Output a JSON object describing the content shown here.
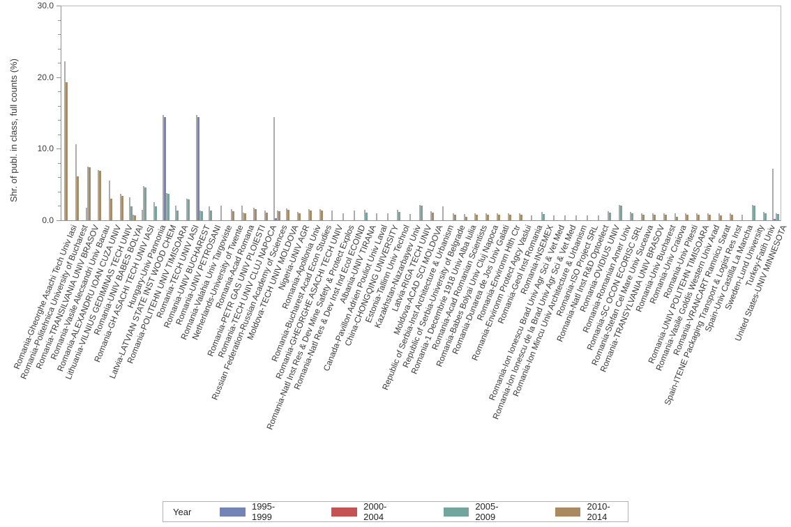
{
  "chart_data": {
    "type": "bar",
    "title": "",
    "ylabel": "Shr. of publ. in class, full counts (%)",
    "ylim": [
      0,
      30
    ],
    "ytick_step_major": 10,
    "ytick_step_minor": 2,
    "yticklabels": [
      "0.0",
      "10.0",
      "20.0",
      "30.0"
    ],
    "grid": "off",
    "legend_position": "bottom",
    "legend_title": "Year",
    "interval_color": "#ababab",
    "series_note": "thin gray companion lines are stability-interval bounds drawn left of each colored bar; s=x means interval only with no visible colored bar",
    "series": [
      {
        "key": "blue",
        "label": "1995-1999",
        "color": "#7584b6"
      },
      {
        "key": "red",
        "label": "2000-2004",
        "color": "#c65353"
      },
      {
        "key": "teal",
        "label": "2005-2009",
        "color": "#72a69d"
      },
      {
        "key": "tan",
        "label": "2010-2014",
        "color": "#aa8a61"
      }
    ],
    "groups": [
      {
        "label": "Romania-Gheorghe Asachi Tech Univ Iasi",
        "bars": [
          {
            "s": "tan",
            "v": 19.3,
            "hi": 22.2
          }
        ]
      },
      {
        "label": "Romania-Politehnica University of Bucharest",
        "bars": [
          {
            "s": "tan",
            "v": 6.1,
            "hi": 10.6
          }
        ]
      },
      {
        "label": "Romania-TRANSILVANIA UNIV BRASOV",
        "bars": [
          {
            "s": "x",
            "v": 0,
            "hi": 1.8
          },
          {
            "s": "tan",
            "v": 7.4,
            "hi": 7.5
          }
        ]
      },
      {
        "label": "Romania-Vasile Alecsandri Univ Bacau",
        "bars": [
          {
            "s": "tan",
            "v": 6.9,
            "hi": 7.0
          }
        ]
      },
      {
        "label": "Romania-ALEXANDRU IOAN CUZA UNIV",
        "bars": [
          {
            "s": "tan",
            "v": 3.0,
            "hi": 5.6
          }
        ]
      },
      {
        "label": "Lithuania-VILNIUS GEDIMINAS TECH UNIV",
        "bars": [
          {
            "s": "tan",
            "v": 3.4,
            "hi": 3.7
          }
        ]
      },
      {
        "label": "Romania-UNIV BABES BOLYAI",
        "bars": [
          {
            "s": "teal",
            "v": 1.9,
            "hi": 3.2
          },
          {
            "s": "tan",
            "v": 0.7,
            "hi": 0.8
          }
        ]
      },
      {
        "label": "Romania-GH ASACHI TECH UNIV IASI",
        "bars": [
          {
            "s": "x",
            "v": 0,
            "hi": 1.5
          },
          {
            "s": "teal",
            "v": 4.6,
            "hi": 4.8
          }
        ]
      },
      {
        "label": "Hungary-Univ Pannonia",
        "bars": [
          {
            "s": "teal",
            "v": 1.9,
            "hi": 2.5
          }
        ]
      },
      {
        "label": "Latvia-LATVIAN STATE INST WOOD CHEM",
        "bars": [
          {
            "s": "blue",
            "v": 14.4,
            "hi": 14.7
          },
          {
            "s": "teal",
            "v": 3.7,
            "hi": 3.8
          }
        ]
      },
      {
        "label": "Romania-POLITEHN UNIV TIMISOARA",
        "bars": [
          {
            "s": "teal",
            "v": 1.4,
            "hi": 2.0
          }
        ]
      },
      {
        "label": "Romania-TECH UNIV IASI",
        "bars": [
          {
            "s": "teal",
            "v": 2.9,
            "hi": 3.0
          }
        ]
      },
      {
        "label": "Romania-UNIV BUCHAREST",
        "bars": [
          {
            "s": "blue",
            "v": 14.4,
            "hi": 14.7
          },
          {
            "s": "teal",
            "v": 1.3,
            "hi": 1.4
          }
        ]
      },
      {
        "label": "Romania-UNIV PETROSANI",
        "bars": [
          {
            "s": "teal",
            "v": 1.4,
            "hi": 1.9
          }
        ]
      },
      {
        "label": "Romania-Valahia Univ Targoviste",
        "bars": [
          {
            "s": "x",
            "v": 0,
            "hi": 2.0
          }
        ]
      },
      {
        "label": "Netherlands-University of Twente",
        "bars": [
          {
            "s": "tan",
            "v": 1.3,
            "hi": 1.6
          }
        ]
      },
      {
        "label": "Romania-Acad Romana",
        "bars": [
          {
            "s": "x",
            "v": 0,
            "hi": 2.0
          },
          {
            "s": "tan",
            "v": 1.0,
            "hi": 1.1
          }
        ]
      },
      {
        "label": "Romania-PETR GAS UNIV PLOIESTI",
        "bars": [
          {
            "s": "tan",
            "v": 1.6,
            "hi": 1.8
          }
        ]
      },
      {
        "label": "Romania-TECH UNIV CLUJ NAPOCA",
        "bars": [
          {
            "s": "tan",
            "v": 1.1,
            "hi": 1.4
          }
        ]
      },
      {
        "label": "Russian Federation-Russian Academy of Sciences",
        "bars": [
          {
            "s": "blue",
            "v": 0.3,
            "hi": 14.4
          },
          {
            "s": "tan",
            "v": 1.3,
            "hi": 1.4
          }
        ]
      },
      {
        "label": "Moldova-TECH UNIV MOLDOVA",
        "bars": [
          {
            "s": "tan",
            "v": 1.5,
            "hi": 1.7
          }
        ]
      },
      {
        "label": "Nigeria-UNIV AGR",
        "bars": [
          {
            "s": "tan",
            "v": 1.0,
            "hi": 1.2
          }
        ]
      },
      {
        "label": "Romania-Apollonia Univ",
        "bars": [
          {
            "s": "tan",
            "v": 1.4,
            "hi": 1.6
          }
        ]
      },
      {
        "label": "Romania-Bucharest Acad Econ Studies",
        "bars": [
          {
            "s": "tan",
            "v": 1.4,
            "hi": 1.6
          }
        ]
      },
      {
        "label": "Romania-GHEORGHE ASACHI TECH UNIV",
        "bars": [
          {
            "s": "x",
            "v": 0,
            "hi": 1.4
          }
        ]
      },
      {
        "label": "Romania-Natl Inst Res & Dev Mine Safety & Protect Explos",
        "bars": [
          {
            "s": "x",
            "v": 0,
            "hi": 1.0
          }
        ]
      },
      {
        "label": "Romania-Natl Res & Dev Inst Ind Ecol ECOIND",
        "bars": [
          {
            "s": "x",
            "v": 0,
            "hi": 1.4
          }
        ]
      },
      {
        "label": "Albania-UNIV TIRANA",
        "bars": [
          {
            "s": "teal",
            "v": 1.1,
            "hi": 1.5
          }
        ]
      },
      {
        "label": "Canada-Pavillon Adrien Pouliot Univ Laval",
        "bars": [
          {
            "s": "x",
            "v": 0,
            "hi": 1.0
          }
        ]
      },
      {
        "label": "China-CHONGQING UNIVERSITY",
        "bars": [
          {
            "s": "x",
            "v": 0,
            "hi": 1.0
          }
        ]
      },
      {
        "label": "Estonia-Tallinn Univ Technol",
        "bars": [
          {
            "s": "teal",
            "v": 1.2,
            "hi": 1.5
          }
        ]
      },
      {
        "label": "Kazakhstan-Nazarbayev Univ",
        "bars": [
          {
            "s": "x",
            "v": 0,
            "hi": 0.9
          }
        ]
      },
      {
        "label": "Latvia-RIGA TECH UNIV",
        "bars": [
          {
            "s": "teal",
            "v": 2.0,
            "hi": 2.1
          }
        ]
      },
      {
        "label": "Moldova-ACAD SCI MOLDOVA",
        "bars": [
          {
            "s": "tan",
            "v": 1.1,
            "hi": 1.3
          }
        ]
      },
      {
        "label": "Republic of Serbia-Inst Architecture & Urbanism",
        "bars": [
          {
            "s": "x",
            "v": 0,
            "hi": 1.9
          }
        ]
      },
      {
        "label": "Republic of Serbia-University of Belgrade",
        "bars": [
          {
            "s": "tan",
            "v": 0.8,
            "hi": 1.0
          }
        ]
      },
      {
        "label": "Romania-1 Decembrie 1918 Univ Alba Iulia",
        "bars": [
          {
            "s": "tan",
            "v": 0.5,
            "hi": 0.9
          }
        ]
      },
      {
        "label": "Romania-Acad Romanian Scientists",
        "bars": [
          {
            "s": "tan",
            "v": 0.8,
            "hi": 1.0
          }
        ]
      },
      {
        "label": "Romania-Babes Bolyai Univ Cluj Napoca",
        "bars": [
          {
            "s": "tan",
            "v": 0.8,
            "hi": 1.0
          }
        ]
      },
      {
        "label": "Romania-Dunarea de Jos Univ Galati",
        "bars": [
          {
            "s": "tan",
            "v": 0.8,
            "hi": 1.0
          }
        ]
      },
      {
        "label": "Romania-Environm Hlth Ctr",
        "bars": [
          {
            "s": "tan",
            "v": 0.8,
            "hi": 1.0
          }
        ]
      },
      {
        "label": "Romania-Environm Protect Agcy Vaslui",
        "bars": [
          {
            "s": "tan",
            "v": 0.8,
            "hi": 1.0
          }
        ]
      },
      {
        "label": "Romania-Geol Inst Romania",
        "bars": [
          {
            "s": "x",
            "v": 0,
            "hi": 0.7
          }
        ]
      },
      {
        "label": "Romania-INSEMEX",
        "bars": [
          {
            "s": "teal",
            "v": 0.9,
            "hi": 1.2
          }
        ]
      },
      {
        "label": "Romania-Ion Ionescu Brad Univ Agr Sci & Vet Med",
        "bars": [
          {
            "s": "x",
            "v": 0,
            "hi": 0.7
          }
        ]
      },
      {
        "label": "Romania-Ion Ionescu de la Brad Univ Agr Sci & Vet Med",
        "bars": [
          {
            "s": "x",
            "v": 0,
            "hi": 0.7
          }
        ]
      },
      {
        "label": "Romania-Ion Mincu Univ Architecture & Urbanism",
        "bars": [
          {
            "s": "x",
            "v": 0,
            "hi": 0.7
          }
        ]
      },
      {
        "label": "Romania-ISO Project SRL",
        "bars": [
          {
            "s": "x",
            "v": 0,
            "hi": 0.7
          }
        ]
      },
      {
        "label": "Romania-Natl Inst R&D Optoelect",
        "bars": [
          {
            "s": "x",
            "v": 0,
            "hi": 0.7
          }
        ]
      },
      {
        "label": "Romania-OVIDIUS UNIV",
        "bars": [
          {
            "s": "teal",
            "v": 1.1,
            "hi": 1.3
          }
        ]
      },
      {
        "label": "Romania-Romanian Amer Univ",
        "bars": [
          {
            "s": "teal",
            "v": 2.0,
            "hi": 2.1
          }
        ]
      },
      {
        "label": "Romania-SC OCON ECORISC SRL",
        "bars": [
          {
            "s": "teal",
            "v": 1.0,
            "hi": 1.2
          }
        ]
      },
      {
        "label": "Romania-Stefan Cel Mare Univ Suceava",
        "bars": [
          {
            "s": "tan",
            "v": 0.8,
            "hi": 1.0
          }
        ]
      },
      {
        "label": "Romania-TRANSYLVANIA UNIV BRASOV",
        "bars": [
          {
            "s": "tan",
            "v": 0.8,
            "hi": 1.0
          }
        ]
      },
      {
        "label": "Romania-Univ Bucharest",
        "bars": [
          {
            "s": "tan",
            "v": 0.8,
            "hi": 1.0
          }
        ]
      },
      {
        "label": "Romania-Univ Craiova",
        "bars": [
          {
            "s": "tan",
            "v": 0.5,
            "hi": 1.0
          }
        ]
      },
      {
        "label": "Romania-Univ Pitesti",
        "bars": [
          {
            "s": "tan",
            "v": 0.8,
            "hi": 1.0
          }
        ]
      },
      {
        "label": "Romania-UNIV POLITEHN TIMISOARA",
        "bars": [
          {
            "s": "tan",
            "v": 0.8,
            "hi": 1.0
          }
        ]
      },
      {
        "label": "Romania-Vasile Goldis Western Univ Arad",
        "bars": [
          {
            "s": "tan",
            "v": 0.8,
            "hi": 1.0
          }
        ]
      },
      {
        "label": "Romania-VRANCART Ramnicu Sarat",
        "bars": [
          {
            "s": "tan",
            "v": 0.7,
            "hi": 1.0
          }
        ]
      },
      {
        "label": "Spain-ITENE Packaging Transport & Logist Res Inst",
        "bars": [
          {
            "s": "tan",
            "v": 0.8,
            "hi": 1.0
          }
        ]
      },
      {
        "label": "Spain-Univ Castilla La Mancha",
        "bars": [
          {
            "s": "x",
            "v": 0,
            "hi": 0.8
          }
        ]
      },
      {
        "label": "Sweden-Lund University",
        "bars": [
          {
            "s": "teal",
            "v": 2.0,
            "hi": 2.1
          }
        ]
      },
      {
        "label": "Turkey-Fatih Univ",
        "bars": [
          {
            "s": "teal",
            "v": 1.0,
            "hi": 1.2
          }
        ]
      },
      {
        "label": "United States-UNIV MINNESOTA",
        "bars": [
          {
            "s": "blue",
            "v": 0.2,
            "hi": 7.2
          },
          {
            "s": "teal",
            "v": 0.9,
            "hi": 1.0
          }
        ]
      }
    ]
  },
  "legend": {
    "title": "Year",
    "items": [
      "1995-1999",
      "2000-2004",
      "2005-2009",
      "2010-2014"
    ]
  }
}
